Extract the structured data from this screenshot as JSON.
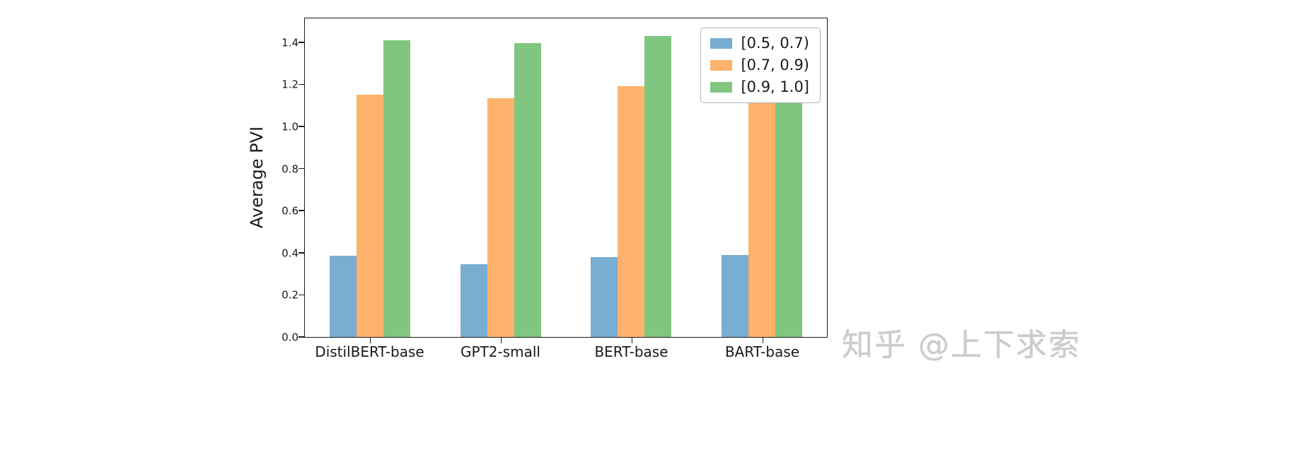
{
  "chart_data": {
    "type": "bar",
    "title": "",
    "xlabel": "",
    "ylabel": "Average PVI",
    "categories": [
      "DistilBERT-base",
      "GPT2-small",
      "BERT-base",
      "BART-base"
    ],
    "series": [
      {
        "name": "[0.5, 0.7)",
        "color": "#79add2",
        "values": [
          0.385,
          0.345,
          0.38,
          0.39
        ]
      },
      {
        "name": "[0.7, 0.9)",
        "color": "#ffb26b",
        "values": [
          1.15,
          1.135,
          1.19,
          1.16
        ]
      },
      {
        "name": "[0.9, 1.0]",
        "color": "#80c680",
        "values": [
          1.41,
          1.395,
          1.43,
          1.45
        ]
      }
    ],
    "ylim": [
      0,
      1.52
    ],
    "yticks": [
      0.0,
      0.2,
      0.4,
      0.6,
      0.8,
      1.0,
      1.2,
      1.4
    ],
    "legend_position": "upper right",
    "grid": false
  },
  "watermark": {
    "text": "知乎 @上下求索"
  }
}
